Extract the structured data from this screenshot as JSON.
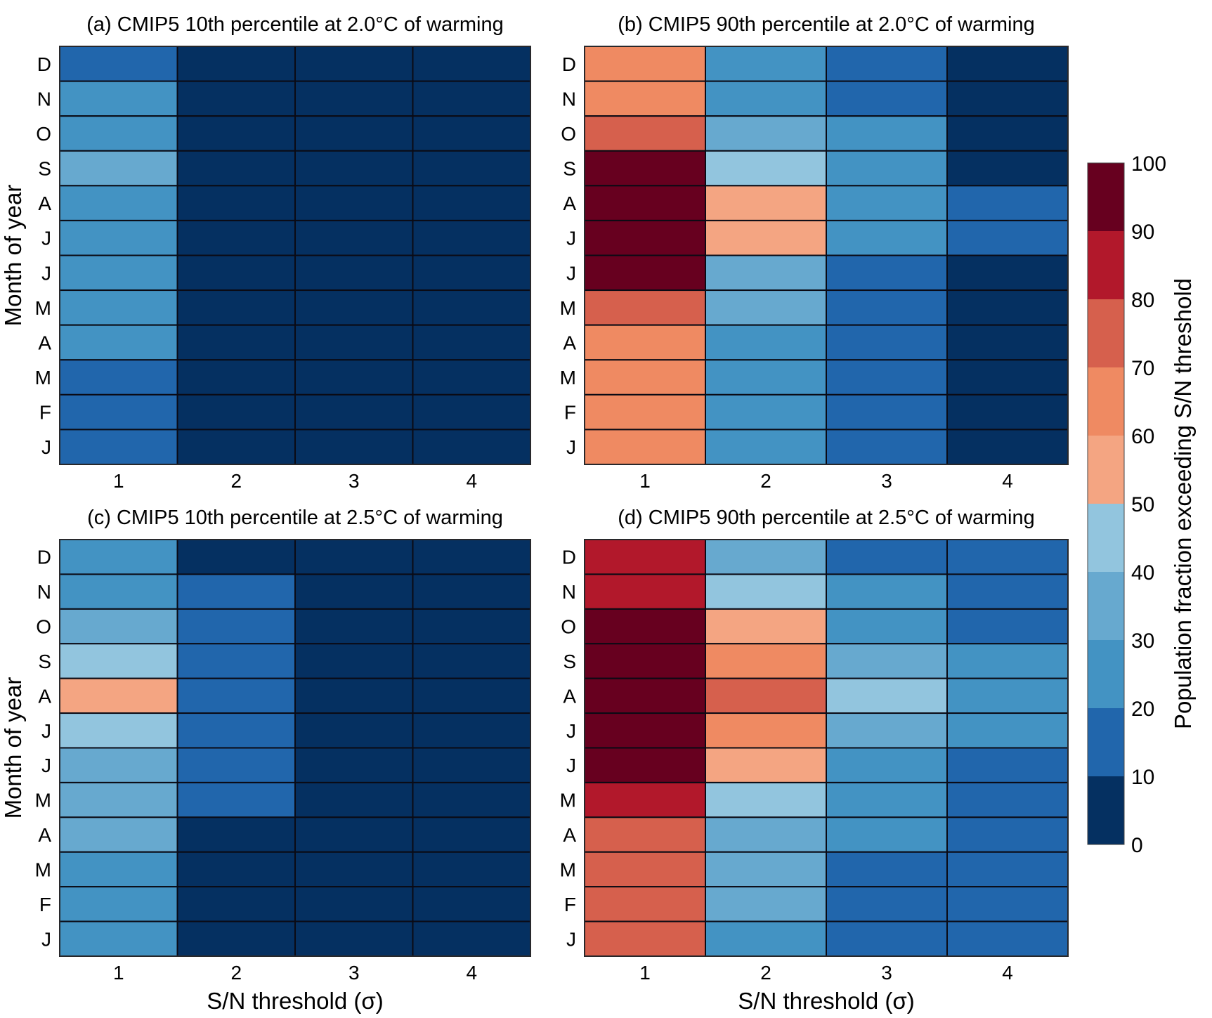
{
  "figure": {
    "colorbar": {
      "label": "Population fraction exceeding S/N threshold",
      "ticks": [
        "0",
        "10",
        "20",
        "30",
        "40",
        "50",
        "60",
        "70",
        "80",
        "90",
        "100"
      ],
      "range": [
        0,
        100
      ],
      "bins": [
        {
          "from": 0,
          "to": 10,
          "color": "#053061"
        },
        {
          "from": 10,
          "to": 20,
          "color": "#2166ac"
        },
        {
          "from": 20,
          "to": 30,
          "color": "#4393c3"
        },
        {
          "from": 30,
          "to": 40,
          "color": "#67a9cf"
        },
        {
          "from": 40,
          "to": 50,
          "color": "#92c5de"
        },
        {
          "from": 50,
          "to": 60,
          "color": "#f4a582"
        },
        {
          "from": 60,
          "to": 70,
          "color": "#ef8a62"
        },
        {
          "from": 70,
          "to": 80,
          "color": "#d6604d"
        },
        {
          "from": 80,
          "to": 90,
          "color": "#b2182b"
        },
        {
          "from": 90,
          "to": 100,
          "color": "#67001f"
        }
      ]
    }
  },
  "chart_data": [
    {
      "type": "heatmap",
      "id": "a",
      "title": "(a) CMIP5 10th percentile at 2.0°C of warming",
      "xlabel": "",
      "ylabel": "Month of year",
      "x_categories": [
        "1",
        "2",
        "3",
        "4"
      ],
      "y_categories_top_to_bottom": [
        "D",
        "N",
        "O",
        "S",
        "A",
        "J",
        "J",
        "M",
        "A",
        "M",
        "F",
        "J"
      ],
      "value_units": "percent (bin midpoint)",
      "values": [
        [
          15,
          5,
          5,
          5
        ],
        [
          25,
          5,
          5,
          5
        ],
        [
          25,
          5,
          5,
          5
        ],
        [
          35,
          5,
          5,
          5
        ],
        [
          25,
          5,
          5,
          5
        ],
        [
          25,
          5,
          5,
          5
        ],
        [
          25,
          5,
          5,
          5
        ],
        [
          25,
          5,
          5,
          5
        ],
        [
          25,
          5,
          5,
          5
        ],
        [
          15,
          5,
          5,
          5
        ],
        [
          15,
          5,
          5,
          5
        ],
        [
          15,
          5,
          5,
          5
        ]
      ]
    },
    {
      "type": "heatmap",
      "id": "b",
      "title": "(b) CMIP5 90th percentile at 2.0°C of warming",
      "xlabel": "",
      "ylabel": "",
      "x_categories": [
        "1",
        "2",
        "3",
        "4"
      ],
      "y_categories_top_to_bottom": [
        "D",
        "N",
        "O",
        "S",
        "A",
        "J",
        "J",
        "M",
        "A",
        "M",
        "F",
        "J"
      ],
      "value_units": "percent (bin midpoint)",
      "values": [
        [
          65,
          25,
          15,
          5
        ],
        [
          65,
          25,
          15,
          5
        ],
        [
          75,
          35,
          25,
          5
        ],
        [
          95,
          45,
          25,
          5
        ],
        [
          95,
          55,
          25,
          15
        ],
        [
          95,
          55,
          25,
          15
        ],
        [
          95,
          35,
          15,
          5
        ],
        [
          75,
          35,
          15,
          5
        ],
        [
          65,
          25,
          15,
          5
        ],
        [
          65,
          25,
          15,
          5
        ],
        [
          65,
          25,
          15,
          5
        ],
        [
          65,
          25,
          15,
          5
        ]
      ]
    },
    {
      "type": "heatmap",
      "id": "c",
      "title": "(c) CMIP5 10th percentile at 2.5°C of warming",
      "xlabel": "S/N threshold (σ)",
      "ylabel": "Month of year",
      "x_categories": [
        "1",
        "2",
        "3",
        "4"
      ],
      "y_categories_top_to_bottom": [
        "D",
        "N",
        "O",
        "S",
        "A",
        "J",
        "J",
        "M",
        "A",
        "M",
        "F",
        "J"
      ],
      "value_units": "percent (bin midpoint)",
      "values": [
        [
          25,
          5,
          5,
          5
        ],
        [
          25,
          15,
          5,
          5
        ],
        [
          35,
          15,
          5,
          5
        ],
        [
          45,
          15,
          5,
          5
        ],
        [
          55,
          15,
          5,
          5
        ],
        [
          45,
          15,
          5,
          5
        ],
        [
          35,
          15,
          5,
          5
        ],
        [
          35,
          15,
          5,
          5
        ],
        [
          35,
          5,
          5,
          5
        ],
        [
          25,
          5,
          5,
          5
        ],
        [
          25,
          5,
          5,
          5
        ],
        [
          25,
          5,
          5,
          5
        ]
      ]
    },
    {
      "type": "heatmap",
      "id": "d",
      "title": "(d) CMIP5 90th percentile at 2.5°C of warming",
      "xlabel": "S/N threshold (σ)",
      "ylabel": "",
      "x_categories": [
        "1",
        "2",
        "3",
        "4"
      ],
      "y_categories_top_to_bottom": [
        "D",
        "N",
        "O",
        "S",
        "A",
        "J",
        "J",
        "M",
        "A",
        "M",
        "F",
        "J"
      ],
      "value_units": "percent (bin midpoint)",
      "values": [
        [
          85,
          35,
          15,
          15
        ],
        [
          85,
          45,
          25,
          15
        ],
        [
          95,
          55,
          25,
          15
        ],
        [
          95,
          65,
          35,
          25
        ],
        [
          95,
          75,
          45,
          25
        ],
        [
          95,
          65,
          35,
          25
        ],
        [
          95,
          55,
          25,
          15
        ],
        [
          85,
          45,
          25,
          15
        ],
        [
          75,
          35,
          25,
          15
        ],
        [
          75,
          35,
          15,
          15
        ],
        [
          75,
          35,
          15,
          15
        ],
        [
          75,
          25,
          15,
          15
        ]
      ]
    }
  ]
}
